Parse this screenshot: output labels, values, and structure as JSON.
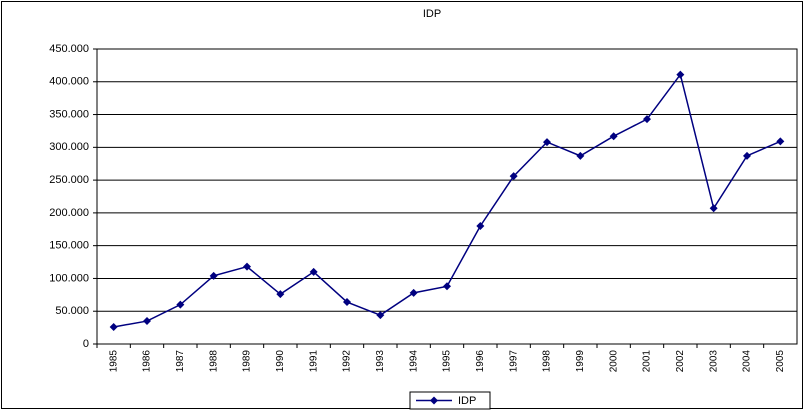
{
  "chart_data": {
    "type": "line",
    "title": "IDP",
    "categories": [
      "1985",
      "1986",
      "1987",
      "1988",
      "1989",
      "1990",
      "1991",
      "1992",
      "1993",
      "1994",
      "1995",
      "1996",
      "1997",
      "1998",
      "1999",
      "2000",
      "2001",
      "2002",
      "2003",
      "2004",
      "2005"
    ],
    "series": [
      {
        "name": "IDP",
        "color": "#000080",
        "values": [
          26000,
          35000,
          60000,
          104000,
          118000,
          76000,
          110000,
          64000,
          44000,
          78000,
          88000,
          180000,
          256000,
          308000,
          287000,
          317000,
          343000,
          411000,
          207000,
          287000,
          309000
        ]
      }
    ],
    "ylim": [
      0,
      450000
    ],
    "yticks": [
      0,
      {
        "value": 50000,
        "label": "50.000"
      },
      {
        "value": 100000,
        "label": "100.000"
      },
      {
        "value": 150000,
        "label": "150.000"
      },
      {
        "value": 200000,
        "label": "200.000"
      },
      {
        "value": 250000,
        "label": "250.000"
      },
      {
        "value": 300000,
        "label": "300.000"
      },
      {
        "value": 350000,
        "label": "350.000"
      },
      {
        "value": 400000,
        "label": "400.000"
      },
      {
        "value": 450000,
        "label": "450.000"
      }
    ],
    "grid": true,
    "legend": "bottom"
  }
}
